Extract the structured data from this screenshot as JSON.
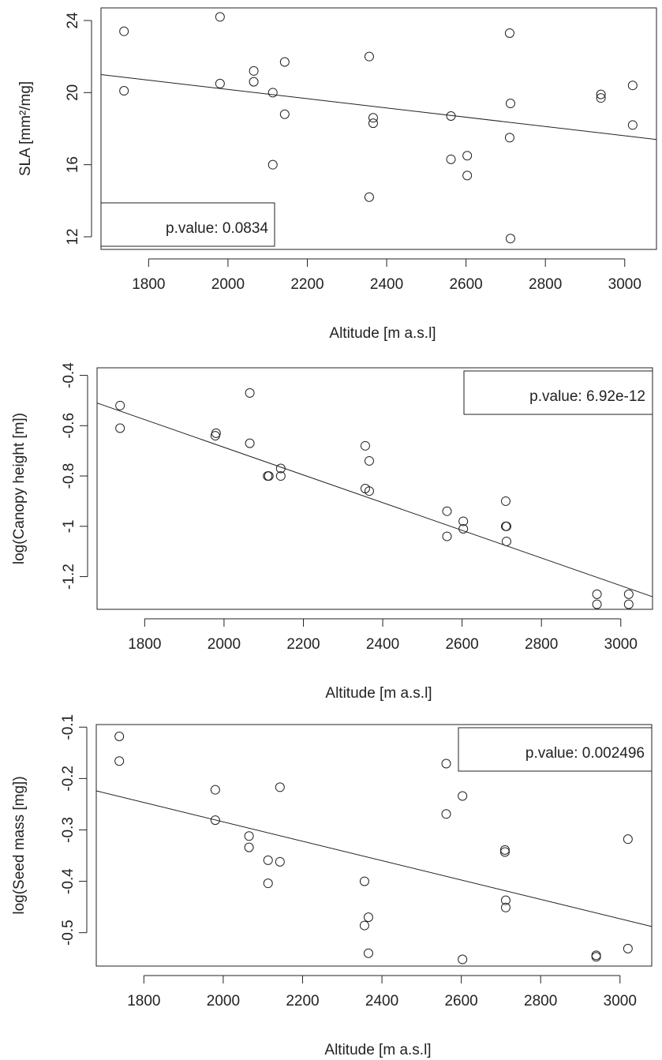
{
  "chart_data": [
    {
      "type": "scatter",
      "xlabel": "Altitude [m a.s.l]",
      "ylabel": "SLA [mm²/mg]",
      "xlim": [
        1680,
        3080
      ],
      "ylim": [
        11.3,
        24.7
      ],
      "xticks": [
        1800,
        2000,
        2200,
        2400,
        2600,
        2800,
        3000
      ],
      "yticks": [
        12,
        16,
        20,
        24
      ],
      "x": [
        1738,
        1738,
        1980,
        1980,
        2065,
        2065,
        2113,
        2113,
        2143,
        2143,
        2356,
        2356,
        2366,
        2366,
        2562,
        2562,
        2603,
        2603,
        2710,
        2710,
        2712,
        2712,
        2940,
        2940,
        3020,
        3020
      ],
      "y": [
        23.4,
        20.1,
        24.2,
        20.5,
        21.2,
        20.6,
        20.0,
        16.0,
        21.7,
        18.8,
        22.0,
        14.2,
        18.6,
        18.3,
        18.7,
        16.3,
        16.5,
        15.4,
        23.3,
        17.5,
        19.4,
        11.9,
        19.9,
        19.7,
        20.4,
        18.2
      ],
      "trend": {
        "x": [
          1680,
          3080
        ],
        "y": [
          21.0,
          17.4
        ]
      },
      "annotation": "p.value: 0.0834",
      "legend_position": "bottom-left"
    },
    {
      "type": "scatter",
      "xlabel": "Altitude [m a.s.l]",
      "ylabel": "log(Canopy height [m])",
      "xlim": [
        1680,
        3080
      ],
      "ylim": [
        -1.33,
        -0.37
      ],
      "xticks": [
        1800,
        2000,
        2200,
        2400,
        2600,
        2800,
        3000
      ],
      "yticks": [
        -0.4,
        -0.6,
        -0.8,
        -1.0,
        -1.2
      ],
      "x": [
        1738,
        1738,
        1978,
        1980,
        2065,
        2065,
        2110,
        2113,
        2143,
        2143,
        2356,
        2356,
        2366,
        2366,
        2562,
        2562,
        2603,
        2603,
        2710,
        2710,
        2712,
        2712,
        2940,
        2940,
        3020,
        3020
      ],
      "y": [
        -0.52,
        -0.61,
        -0.64,
        -0.63,
        -0.47,
        -0.67,
        -0.8,
        -0.8,
        -0.77,
        -0.8,
        -0.68,
        -0.85,
        -0.74,
        -0.86,
        -0.94,
        -1.04,
        -0.98,
        -1.01,
        -0.9,
        -1.0,
        -1.0,
        -1.06,
        -1.27,
        -1.31,
        -1.27,
        -1.31
      ],
      "trend": {
        "x": [
          1680,
          3080
        ],
        "y": [
          -0.51,
          -1.28
        ]
      },
      "annotation": "p.value: 6.92e-12",
      "legend_position": "top-right"
    },
    {
      "type": "scatter",
      "xlabel": "Altitude [m a.s.l]",
      "ylabel": "log(Seed mass [mg])",
      "xlim": [
        1680,
        3080
      ],
      "ylim": [
        -0.565,
        -0.095
      ],
      "xticks": [
        1800,
        2000,
        2200,
        2400,
        2600,
        2800,
        3000
      ],
      "yticks": [
        -0.1,
        -0.2,
        -0.3,
        -0.4,
        -0.5
      ],
      "x": [
        1738,
        1738,
        1980,
        1980,
        2065,
        2065,
        2113,
        2113,
        2143,
        2143,
        2356,
        2356,
        2366,
        2366,
        2562,
        2562,
        2603,
        2603,
        2710,
        2710,
        2712,
        2712,
        2940,
        2940,
        3020,
        3020
      ],
      "y": [
        -0.118,
        -0.166,
        -0.222,
        -0.281,
        -0.312,
        -0.334,
        -0.359,
        -0.404,
        -0.217,
        -0.362,
        -0.4,
        -0.486,
        -0.47,
        -0.54,
        -0.171,
        -0.269,
        -0.234,
        -0.552,
        -0.339,
        -0.343,
        -0.437,
        -0.451,
        -0.544,
        -0.547,
        -0.318,
        -0.531
      ],
      "trend": {
        "x": [
          1680,
          3080
        ],
        "y": [
          -0.224,
          -0.488
        ]
      },
      "annotation": "p.value: 0.002496",
      "legend_position": "top-right"
    }
  ]
}
